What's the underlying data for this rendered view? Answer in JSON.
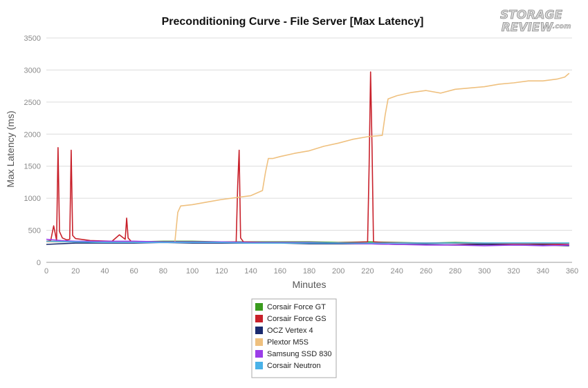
{
  "logo": {
    "line1": "STORAGE",
    "line2": "REVIEW",
    "suffix": ".com"
  },
  "chart_data": {
    "type": "line",
    "title": "Preconditioning Curve - File Server [Max Latency]",
    "xlabel": "Minutes",
    "ylabel": "Max Latency (ms)",
    "xlim": [
      0,
      360
    ],
    "ylim": [
      0,
      3500
    ],
    "xticks": [
      0,
      20,
      40,
      60,
      80,
      100,
      120,
      140,
      160,
      180,
      200,
      220,
      240,
      260,
      280,
      300,
      320,
      340,
      360
    ],
    "yticks": [
      0,
      500,
      1000,
      1500,
      2000,
      2500,
      3000,
      3500
    ],
    "grid": "horizontal",
    "legend_position": "bottom-center",
    "series": [
      {
        "name": "Corsair Force GT",
        "color": "#3a9b1e",
        "x": [
          0,
          20,
          40,
          60,
          80,
          100,
          120,
          140,
          160,
          180,
          200,
          220,
          240,
          260,
          280,
          300,
          320,
          340,
          358
        ],
        "y": [
          330,
          320,
          310,
          320,
          330,
          330,
          320,
          320,
          320,
          320,
          310,
          320,
          310,
          300,
          310,
          300,
          300,
          300,
          300
        ]
      },
      {
        "name": "Corsair Force GS",
        "color": "#c8202a",
        "x": [
          0,
          3,
          5,
          7,
          8,
          9,
          11,
          14,
          16,
          17,
          18,
          20,
          30,
          45,
          50,
          54,
          55,
          56,
          58,
          70,
          90,
          110,
          130,
          131,
          132,
          133,
          135,
          150,
          170,
          190,
          210,
          220,
          221,
          222,
          223,
          224,
          230,
          250,
          270,
          290,
          310,
          330,
          358
        ],
        "y": [
          330,
          340,
          570,
          340,
          1790,
          480,
          380,
          350,
          360,
          1750,
          420,
          370,
          340,
          330,
          430,
          360,
          690,
          380,
          330,
          320,
          320,
          310,
          320,
          1200,
          1750,
          380,
          320,
          310,
          310,
          300,
          310,
          320,
          1500,
          2970,
          1800,
          320,
          310,
          300,
          300,
          290,
          290,
          290,
          280
        ]
      },
      {
        "name": "OCZ Vertex 4",
        "color": "#1a2a6e",
        "x": [
          0,
          20,
          40,
          60,
          80,
          100,
          120,
          140,
          160,
          180,
          200,
          220,
          240,
          260,
          280,
          300,
          320,
          340,
          358
        ],
        "y": [
          280,
          300,
          300,
          300,
          310,
          300,
          300,
          300,
          300,
          290,
          290,
          290,
          280,
          280,
          270,
          280,
          270,
          270,
          260
        ]
      },
      {
        "name": "Plextor M5S",
        "color": "#efc07e",
        "x": [
          0,
          20,
          40,
          60,
          80,
          88,
          90,
          92,
          100,
          110,
          120,
          130,
          140,
          148,
          150,
          152,
          155,
          160,
          170,
          180,
          190,
          200,
          210,
          220,
          230,
          232,
          234,
          240,
          250,
          260,
          270,
          280,
          290,
          300,
          310,
          320,
          330,
          340,
          350,
          355,
          358
        ],
        "y": [
          320,
          320,
          310,
          320,
          310,
          320,
          780,
          880,
          900,
          940,
          980,
          1010,
          1040,
          1120,
          1400,
          1620,
          1620,
          1650,
          1700,
          1740,
          1810,
          1860,
          1920,
          1960,
          1980,
          2300,
          2550,
          2600,
          2650,
          2680,
          2640,
          2700,
          2720,
          2740,
          2780,
          2800,
          2830,
          2830,
          2860,
          2890,
          2950
        ]
      },
      {
        "name": "Samsung SSD 830",
        "color": "#9b3ee8",
        "x": [
          0,
          10,
          20,
          40,
          60,
          80,
          100,
          120,
          140,
          160,
          180,
          200,
          220,
          240,
          260,
          280,
          300,
          320,
          340,
          358
        ],
        "y": [
          360,
          340,
          330,
          330,
          330,
          320,
          320,
          320,
          310,
          310,
          310,
          300,
          290,
          280,
          270,
          270,
          260,
          270,
          260,
          270
        ]
      },
      {
        "name": "Corsair Neutron",
        "color": "#4ab2e8",
        "x": [
          0,
          20,
          40,
          60,
          80,
          100,
          120,
          140,
          160,
          180,
          200,
          220,
          240,
          260,
          280,
          300,
          320,
          340,
          358
        ],
        "y": [
          330,
          320,
          310,
          310,
          310,
          310,
          310,
          300,
          300,
          300,
          300,
          300,
          300,
          300,
          300,
          300,
          300,
          300,
          300
        ]
      }
    ]
  }
}
